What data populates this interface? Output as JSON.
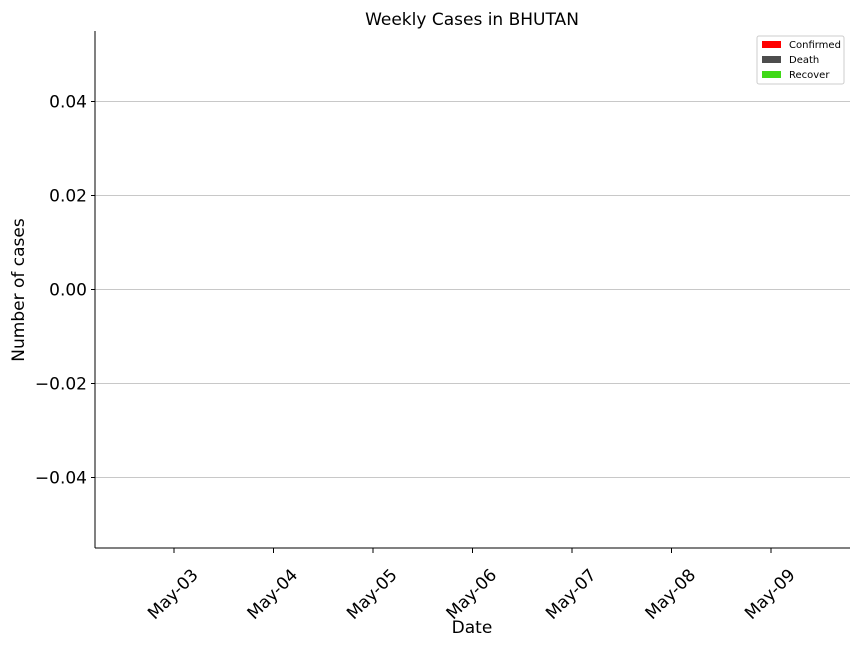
{
  "chart_data": {
    "type": "bar",
    "title": "Weekly Cases in BHUTAN",
    "xlabel": "Date",
    "ylabel": "Number of cases",
    "categories": [
      "May-03",
      "May-04",
      "May-05",
      "May-06",
      "May-07",
      "May-08",
      "May-09"
    ],
    "series": [
      {
        "name": "Confirmed",
        "color": "#ff0000",
        "values": [
          0,
          0,
          0,
          0,
          0,
          0,
          0
        ]
      },
      {
        "name": "Death",
        "color": "#4d4d4d",
        "values": [
          0,
          0,
          0,
          0,
          0,
          0,
          0
        ]
      },
      {
        "name": "Recover",
        "color": "#3fd916",
        "values": [
          0,
          0,
          0,
          0,
          0,
          0,
          0
        ]
      }
    ],
    "ylim": [
      -0.055,
      0.055
    ],
    "yticks": [
      -0.04,
      -0.02,
      0.0,
      0.02,
      0.04
    ],
    "ytick_labels": [
      "−0.04",
      "−0.02",
      "0.00",
      "0.02",
      "0.04"
    ],
    "grid": "y",
    "legend_position": "top-right"
  }
}
